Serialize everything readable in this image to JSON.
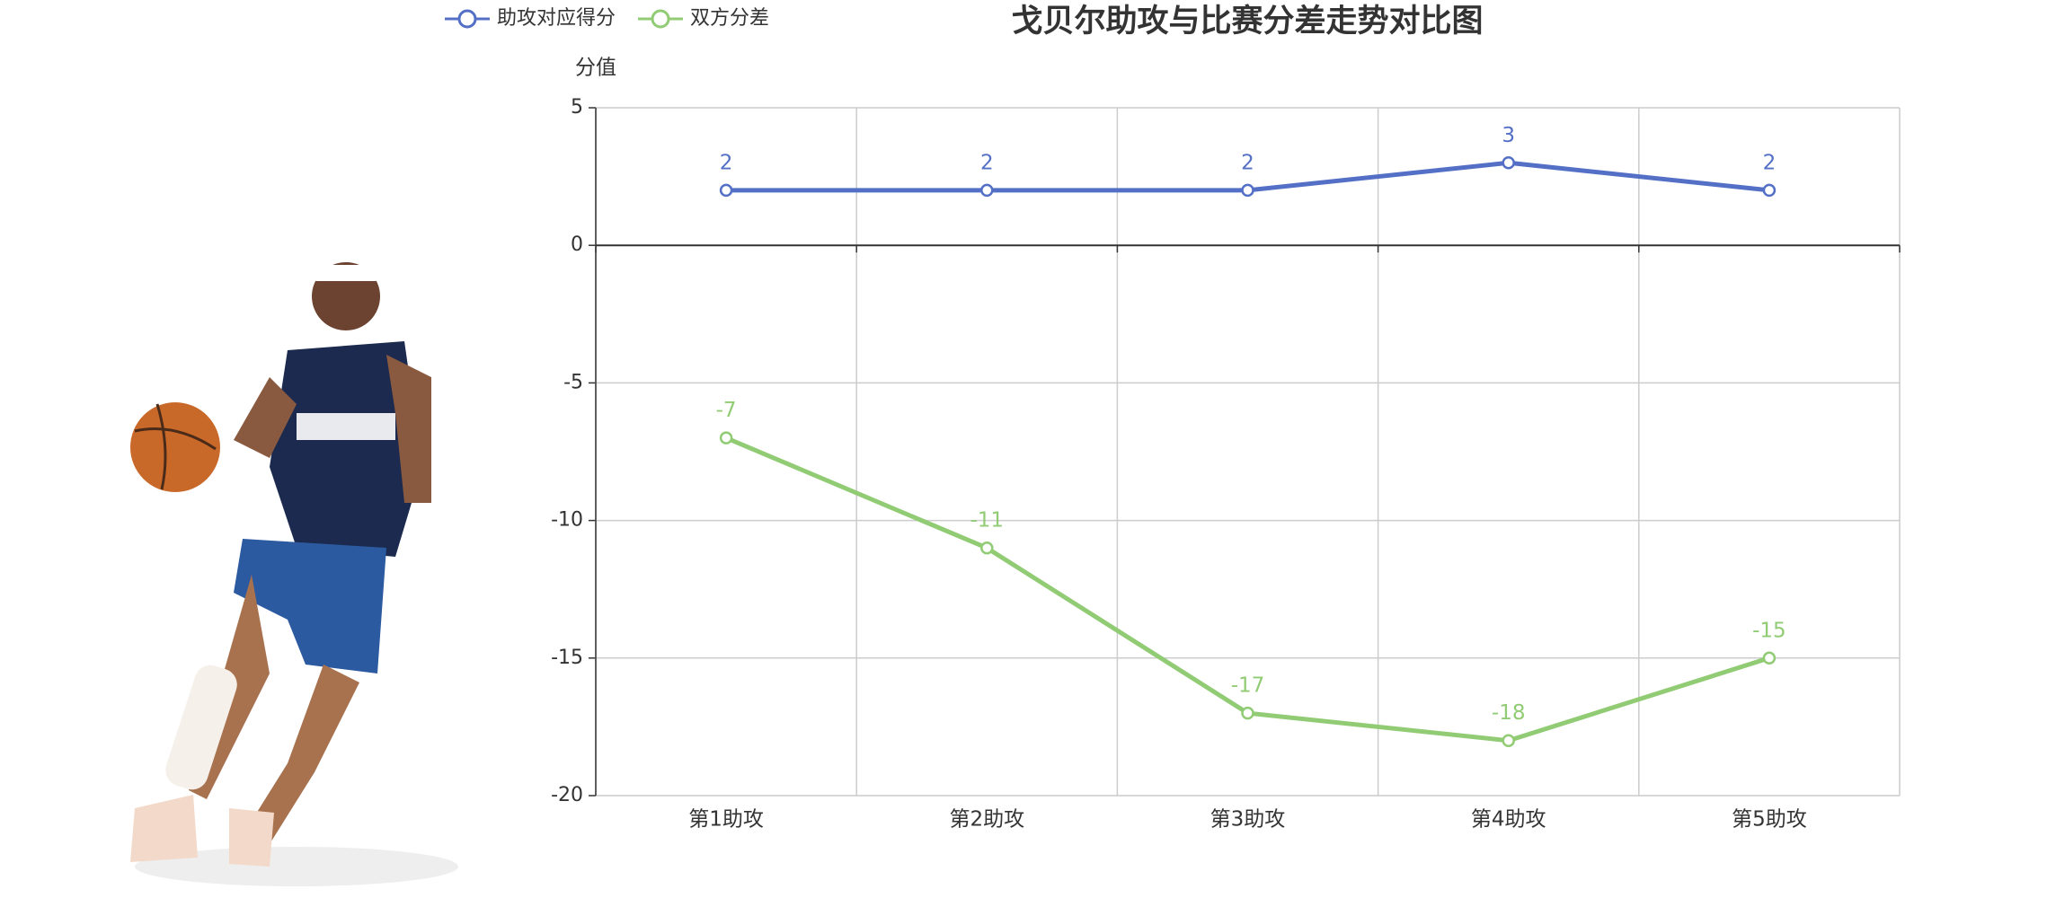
{
  "chart_data": {
    "type": "line",
    "title": "戈贝尔助攻与比赛分差走势对比图",
    "y_axis_name": "分值",
    "categories": [
      "第1助攻",
      "第2助攻",
      "第3助攻",
      "第4助攻",
      "第5助攻"
    ],
    "series": [
      {
        "name": "助攻对应得分",
        "color": "#5470c6",
        "values": [
          2,
          2,
          2,
          3,
          2
        ]
      },
      {
        "name": "双方分差",
        "color": "#91cc75",
        "values": [
          -7,
          -11,
          -17,
          -18,
          -15
        ]
      }
    ],
    "ylim": [
      -20,
      5
    ],
    "yticks": [
      5,
      0,
      -5,
      -10,
      -15,
      -20
    ],
    "grid": true
  }
}
